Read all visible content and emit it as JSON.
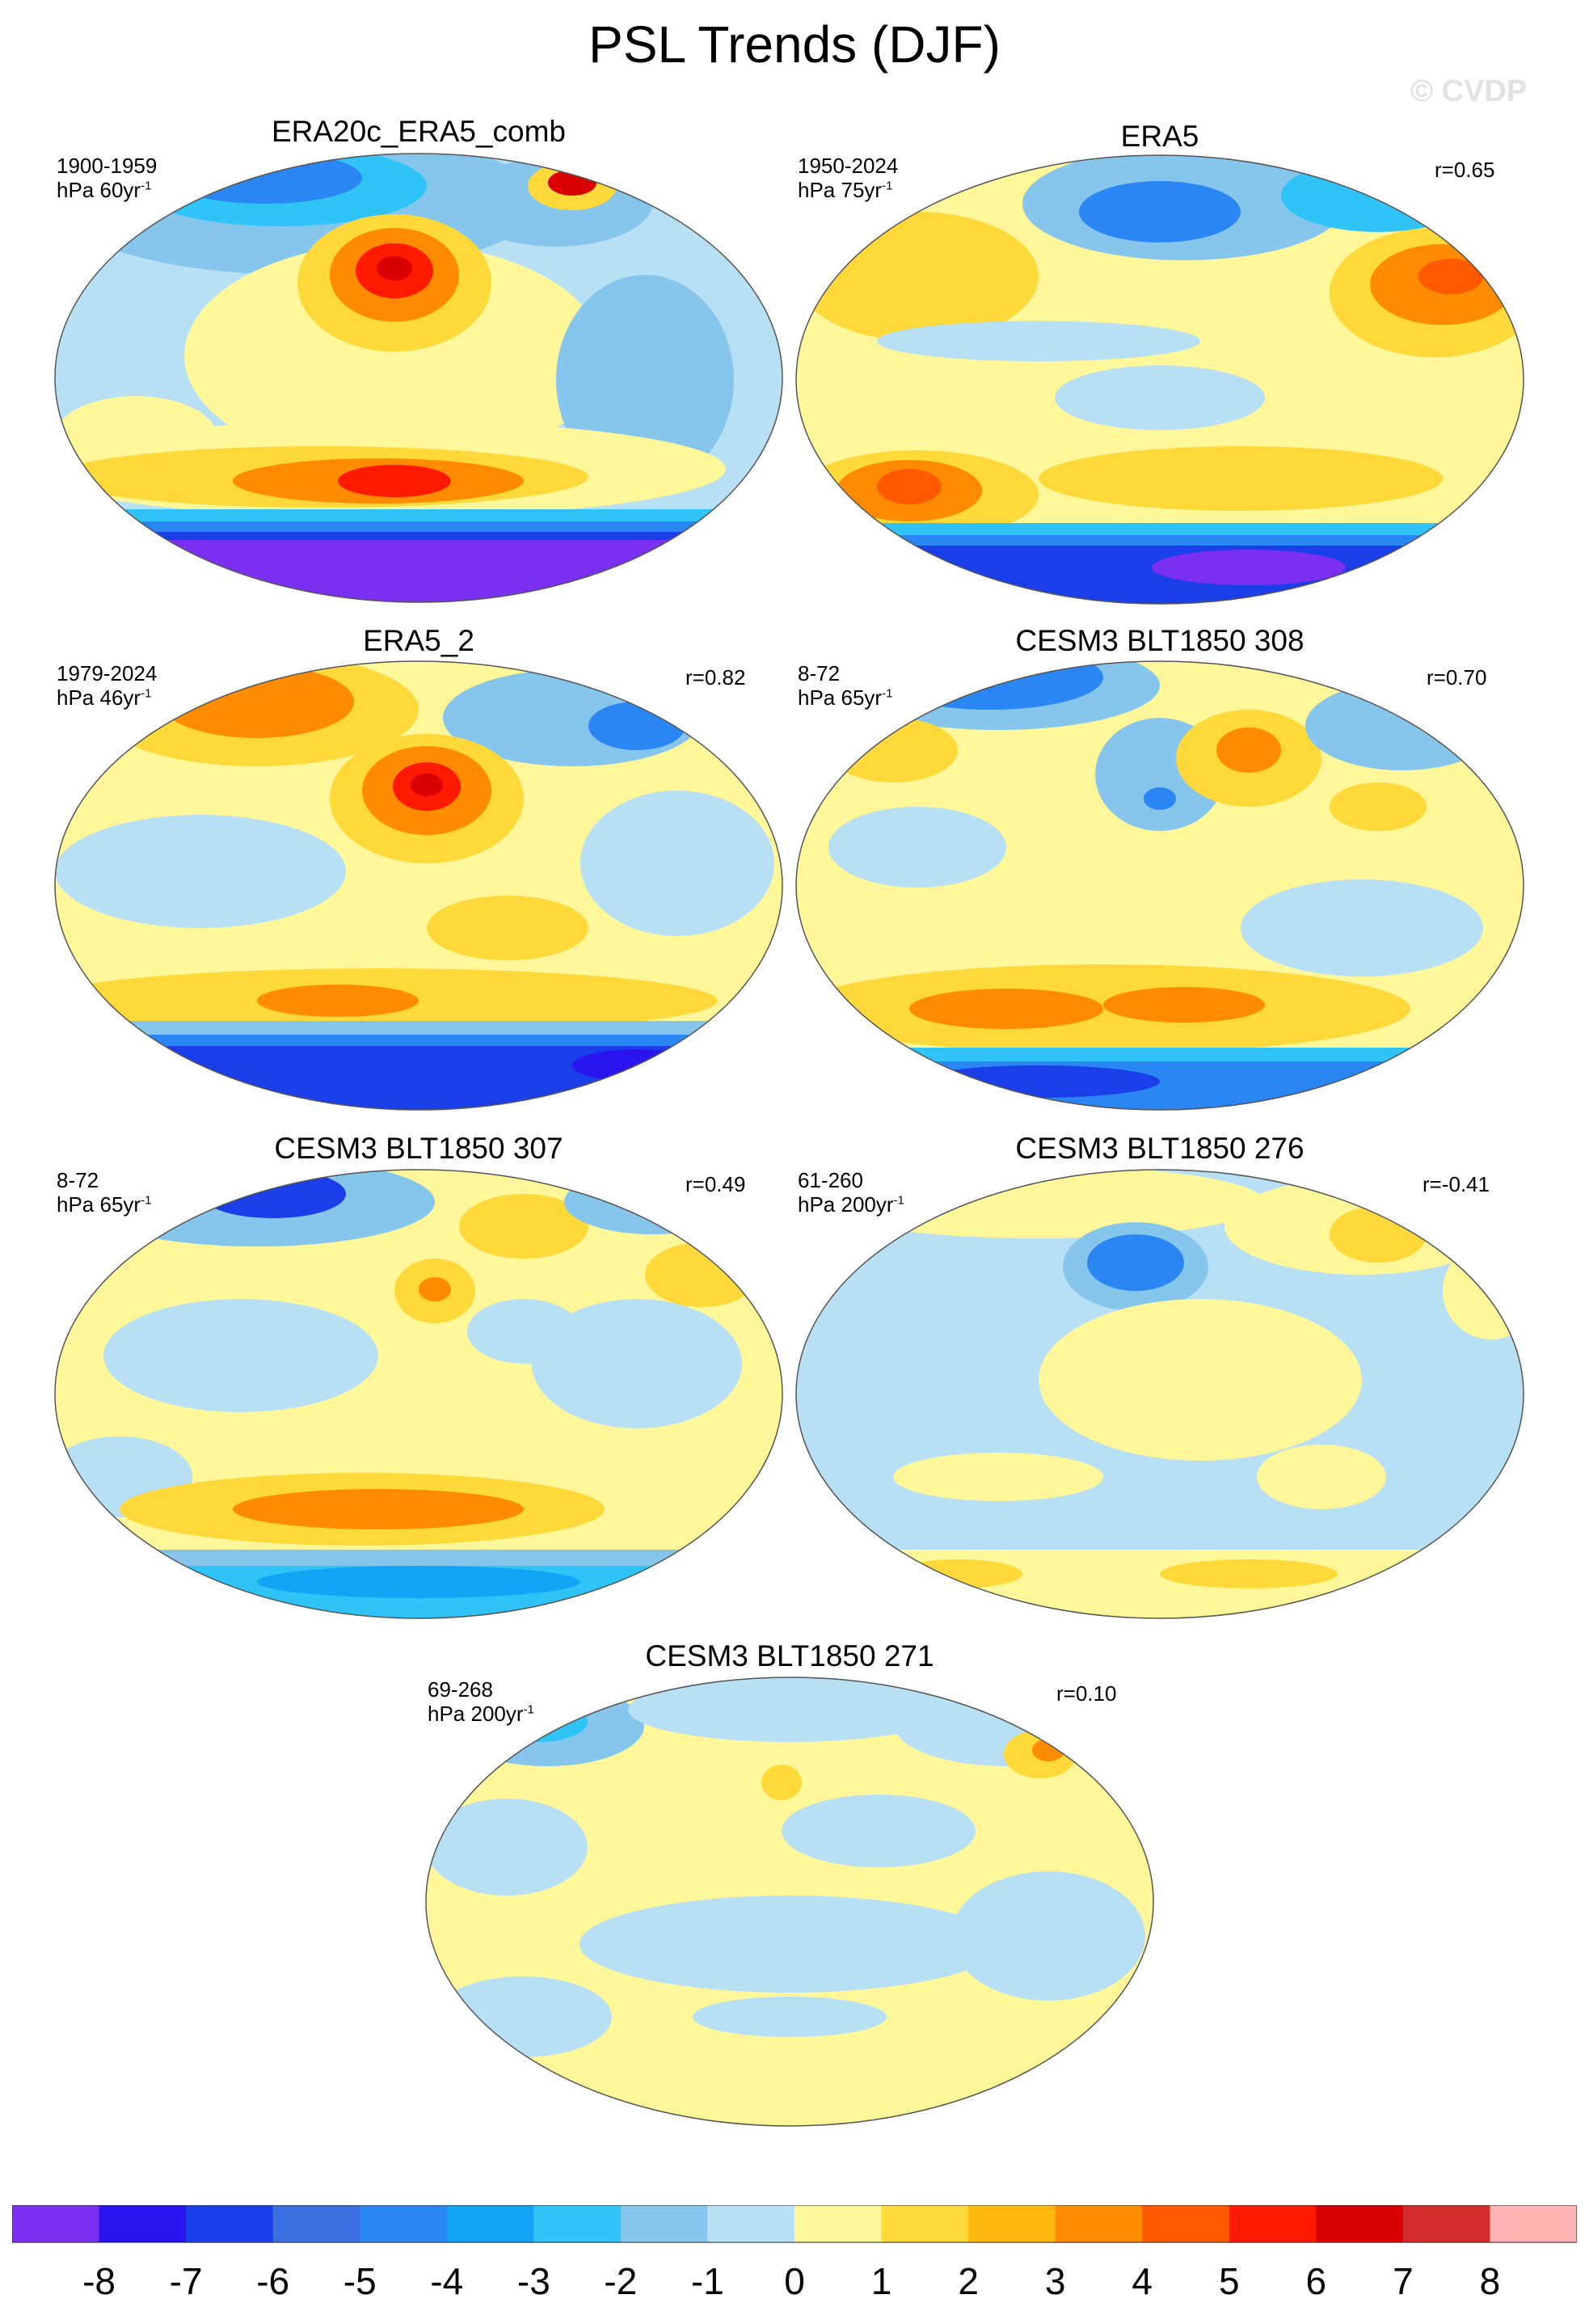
{
  "title": "PSL Trends (DJF)",
  "watermark": "© CVDP",
  "panels": [
    {
      "title": "ERA20c_ERA5_comb",
      "period": "1900-1959",
      "units_base": "hPa 60yr",
      "units_exp": "-1",
      "corr": ""
    },
    {
      "title": "ERA5",
      "period": "1950-2024",
      "units_base": "hPa 75yr",
      "units_exp": "-1",
      "corr": "r=0.65"
    },
    {
      "title": "ERA5_2",
      "period": "1979-2024",
      "units_base": "hPa 46yr",
      "units_exp": "-1",
      "corr": "r=0.82"
    },
    {
      "title": "CESM3 BLT1850 308",
      "period": "8-72",
      "units_base": "hPa 65yr",
      "units_exp": "-1",
      "corr": "r=0.70"
    },
    {
      "title": "CESM3 BLT1850 307",
      "period": "8-72",
      "units_base": "hPa 65yr",
      "units_exp": "-1",
      "corr": "r=0.49"
    },
    {
      "title": "CESM3 BLT1850 276",
      "period": "61-260",
      "units_base": "hPa 200yr",
      "units_exp": "-1",
      "corr": "r=-0.41"
    },
    {
      "title": "CESM3 BLT1850 271",
      "period": "69-268",
      "units_base": "hPa 200yr",
      "units_exp": "-1",
      "corr": "r=0.10"
    }
  ],
  "colorbar": {
    "labels": [
      "-8",
      "-7",
      "-6",
      "-5",
      "-4",
      "-3",
      "-2",
      "-1",
      "0",
      "1",
      "2",
      "3",
      "4",
      "5",
      "6",
      "7",
      "8"
    ],
    "colors": [
      "#7b2ff0",
      "#2a14f0",
      "#1a3ee8",
      "#3c6fe0",
      "#2a86f2",
      "#13a5f5",
      "#2fc3f8",
      "#86c6ec",
      "#b8e0f4",
      "#fff79a",
      "#ffd93a",
      "#ffb80e",
      "#ff8c00",
      "#ff5a00",
      "#ff1a00",
      "#d80000",
      "#d42d2d",
      "#ffb3b3"
    ]
  }
}
